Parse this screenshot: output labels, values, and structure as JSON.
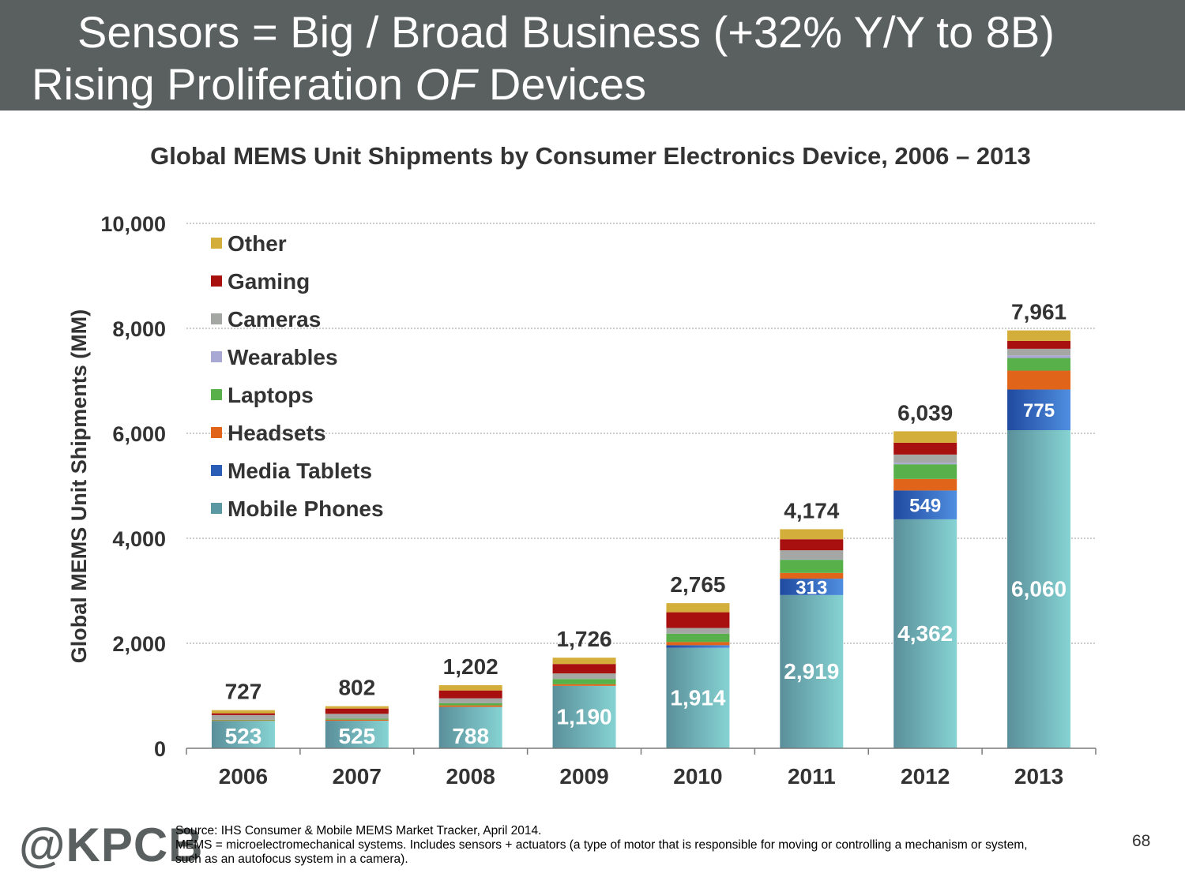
{
  "header": {
    "title_line1": "Sensors = Big / Broad Business (+32% Y/Y to 8B)",
    "title_line2_before": "Rising Proliferation ",
    "title_line2_italic": "OF",
    "title_line2_after": " Devices"
  },
  "chart_data": {
    "type": "bar",
    "stacked": true,
    "title": "Global MEMS Unit Shipments by Consumer Electronics Device, 2006 – 2013",
    "xlabel": "",
    "ylabel": "Global MEMS Unit Shipments (MM)",
    "ylim": [
      0,
      10000
    ],
    "yticks": [
      0,
      2000,
      4000,
      6000,
      8000,
      10000
    ],
    "ytick_labels": [
      "0",
      "2,000",
      "4,000",
      "6,000",
      "8,000",
      "10,000"
    ],
    "grid": true,
    "legend_position": "top-left",
    "categories": [
      "2006",
      "2007",
      "2008",
      "2009",
      "2010",
      "2011",
      "2012",
      "2013"
    ],
    "totals": [
      727,
      802,
      1202,
      1726,
      2765,
      4174,
      6039,
      7961
    ],
    "total_labels": [
      "727",
      "802",
      "1,202",
      "1,726",
      "2,765",
      "4,174",
      "6,039",
      "7,961"
    ],
    "series": [
      {
        "name": "Mobile Phones",
        "color": "#5a98a3",
        "values": [
          523,
          525,
          788,
          1190,
          1914,
          2919,
          4362,
          6060
        ],
        "labels": [
          "523",
          "525",
          "788",
          "1,190",
          "1,914",
          "2,919",
          "4,362",
          "6,060"
        ]
      },
      {
        "name": "Media Tablets",
        "color": "#2a5db5",
        "values": [
          0,
          0,
          0,
          0,
          50,
          313,
          549,
          775
        ],
        "labels": [
          "",
          "",
          "",
          "",
          "",
          "313",
          "549",
          "775"
        ]
      },
      {
        "name": "Headsets",
        "color": "#e0641a",
        "values": [
          10,
          20,
          30,
          30,
          60,
          110,
          220,
          360
        ],
        "labels": [
          "",
          "",
          "",
          "",
          "",
          "",
          "",
          ""
        ]
      },
      {
        "name": "Laptops",
        "color": "#58b04a",
        "values": [
          10,
          20,
          40,
          100,
          160,
          250,
          280,
          240
        ],
        "labels": [
          "",
          "",
          "",
          "",
          "",
          "",
          "",
          ""
        ]
      },
      {
        "name": "Wearables",
        "color": "#a9a7d4",
        "values": [
          0,
          0,
          0,
          0,
          0,
          10,
          30,
          50
        ],
        "labels": [
          "",
          "",
          "",
          "",
          "",
          "",
          "",
          ""
        ]
      },
      {
        "name": "Cameras",
        "color": "#a4a7a4",
        "values": [
          90,
          92,
          94,
          106,
          108,
          170,
          155,
          126
        ],
        "labels": [
          "",
          "",
          "",
          "",
          "",
          "",
          "",
          ""
        ]
      },
      {
        "name": "Gaming",
        "color": "#a80f0f",
        "values": [
          34,
          100,
          150,
          180,
          300,
          210,
          225,
          150
        ],
        "labels": [
          "",
          "",
          "",
          "",
          "",
          "",
          "",
          ""
        ]
      },
      {
        "name": "Other",
        "color": "#d4ae3a",
        "values": [
          60,
          45,
          100,
          120,
          173,
          192,
          218,
          200
        ],
        "labels": [
          "",
          "",
          "",
          "",
          "",
          "",
          "",
          ""
        ]
      }
    ],
    "legend_order": [
      "Other",
      "Gaming",
      "Cameras",
      "Wearables",
      "Laptops",
      "Headsets",
      "Media Tablets",
      "Mobile Phones"
    ]
  },
  "footer": {
    "logo": "@KPCB",
    "source": "Source: IHS Consumer & Mobile MEMS Market Tracker, April 2014.",
    "note_line1": "MEMS = microelectromechanical systems. Includes sensors + actuators (a type of motor that is responsible for moving or controlling a mechanism or system,",
    "note_line2": "such as an autofocus system in a camera).",
    "page_number": "68"
  }
}
